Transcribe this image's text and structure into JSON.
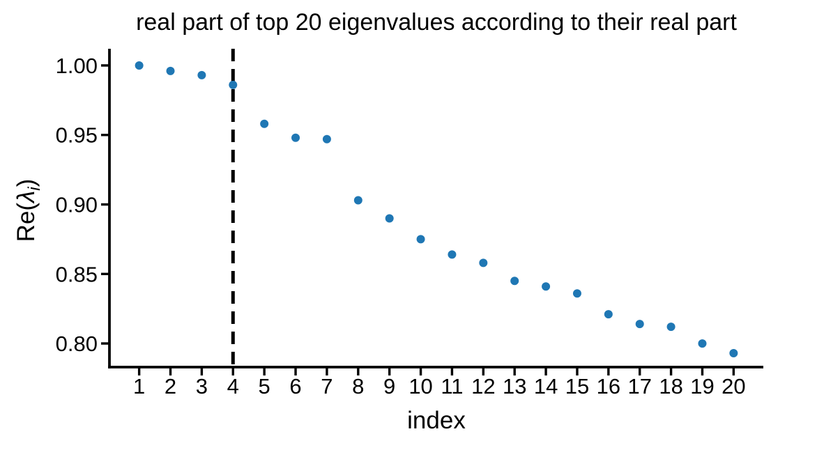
{
  "figure": {
    "background": "#ffffff"
  },
  "chart_data": {
    "type": "scatter",
    "title": "real part of top 20 eigenvalues according to their real part",
    "xlabel": "index",
    "ylabel": "Re(λ_i)",
    "ylabel_parts": {
      "pre": "Re(",
      "symbol": "λ",
      "subscript": "i",
      "post": ")"
    },
    "x": [
      1,
      2,
      3,
      4,
      5,
      6,
      7,
      8,
      9,
      10,
      11,
      12,
      13,
      14,
      15,
      16,
      17,
      18,
      19,
      20
    ],
    "y": [
      1.0,
      0.996,
      0.993,
      0.986,
      0.958,
      0.948,
      0.947,
      0.903,
      0.89,
      0.875,
      0.864,
      0.858,
      0.845,
      0.841,
      0.836,
      0.821,
      0.814,
      0.812,
      0.8,
      0.793
    ],
    "x_tick_labels": [
      "1",
      "2",
      "3",
      "4",
      "5",
      "6",
      "7",
      "8",
      "9",
      "10",
      "11",
      "12",
      "13",
      "14",
      "15",
      "16",
      "17",
      "18",
      "19",
      "20"
    ],
    "y_tick_values": [
      1.0,
      0.95,
      0.9,
      0.85,
      0.8
    ],
    "y_tick_labels": [
      "1.00",
      "0.95",
      "0.90",
      "0.85",
      "0.80"
    ],
    "xlim": [
      0.05,
      20.95
    ],
    "ylim": [
      0.783,
      1.012
    ],
    "vline_x": 4,
    "vline_style": "dashed",
    "vline_color": "#000000",
    "point_color": "#1f77b4",
    "axis_color": "#000000",
    "grid": false,
    "legend": null
  }
}
